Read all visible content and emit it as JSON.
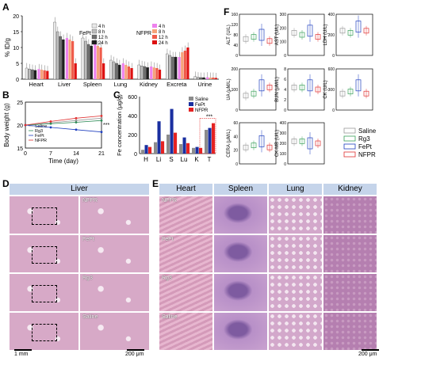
{
  "panels": {
    "A": "A",
    "B": "B",
    "C": "C",
    "D": "D",
    "E": "E",
    "F": "F"
  },
  "chart_A": {
    "type": "bar",
    "ylabel": "% ID/g",
    "ylim": [
      0,
      20
    ],
    "yticks": [
      "0",
      "5",
      "10",
      "15",
      "20"
    ],
    "categories": [
      "Heart",
      "Liver",
      "Spleen",
      "Lung",
      "Kidney",
      "Excreta",
      "Urine"
    ],
    "group_fept": "FePt",
    "group_nfpr": "NFPR",
    "legend_fept": [
      "4 h",
      "8 h",
      "12 h",
      "24 h"
    ],
    "legend_nfpr": [
      "4 h",
      "8 h",
      "12 h",
      "24 h"
    ],
    "fept_colors": [
      "#e9e9e9",
      "#bdbdbd",
      "#6f6f6f",
      "#1e1e1e"
    ],
    "nfpr_colors": [
      "#ee82ee",
      "#f5a37a",
      "#ef5b4a",
      "#dd1111"
    ],
    "fept": [
      [
        3.5,
        3.2,
        3.0,
        2.8
      ],
      [
        18,
        15,
        13.5,
        12.5
      ],
      [
        13,
        12,
        11,
        10.5
      ],
      [
        6,
        5.5,
        5,
        4.5
      ],
      [
        4.5,
        4.2,
        4,
        3.7
      ],
      [
        8,
        7.5,
        7,
        7
      ],
      [
        0.8,
        0.6,
        0.5,
        0.5
      ]
    ],
    "nfpr": [
      [
        3.2,
        3,
        2.8,
        2.6
      ],
      [
        13,
        12.5,
        12,
        5
      ],
      [
        11.5,
        10.5,
        10,
        5
      ],
      [
        5,
        4.5,
        4,
        3.5
      ],
      [
        4,
        3.7,
        3.5,
        3
      ],
      [
        7,
        8.5,
        9,
        10
      ],
      [
        0.6,
        0.5,
        0.5,
        0.4
      ]
    ]
  },
  "chart_B": {
    "type": "line",
    "ylabel": "Body weight (g)",
    "xlabel": "Time (day)",
    "xticks": [
      "0",
      "7",
      "14",
      "21"
    ],
    "yticks": [
      "15",
      "20",
      "25"
    ],
    "ylim": [
      15,
      25
    ],
    "series": [
      {
        "name": "Saline",
        "color": "#999999",
        "values": [
          20,
          20.5,
          21,
          21.5
        ]
      },
      {
        "name": "Rg3",
        "color": "#2e8b57",
        "values": [
          20,
          20.3,
          20.6,
          21
        ]
      },
      {
        "name": "FePt",
        "color": "#1f3fbf",
        "values": [
          20,
          19.5,
          19,
          18.5
        ]
      },
      {
        "name": "NFPR",
        "color": "#e03030",
        "values": [
          20,
          20.8,
          21.5,
          22
        ]
      }
    ],
    "x": [
      0,
      7,
      14,
      21
    ],
    "annotation": "***"
  },
  "chart_C": {
    "type": "bar",
    "ylabel": "Fe concentration (μg/g)",
    "ylim": [
      0,
      600
    ],
    "yticks": [
      "0",
      "200",
      "400",
      "600"
    ],
    "categories": [
      "H",
      "Li",
      "S",
      "Lu",
      "K",
      "T"
    ],
    "series": [
      {
        "name": "Saline",
        "color": "#8c8c8c",
        "values": [
          40,
          120,
          200,
          100,
          60,
          250
        ]
      },
      {
        "name": "FePt",
        "color": "#1a2fa0",
        "values": [
          90,
          340,
          470,
          170,
          70,
          270
        ]
      },
      {
        "name": "NFPR",
        "color": "#e52222",
        "values": [
          70,
          130,
          220,
          110,
          60,
          320
        ]
      }
    ],
    "annotation": "***"
  },
  "panel_F": {
    "boxes": [
      {
        "label": "ALT (U/L)",
        "ticks": [
          "0",
          "40",
          "80",
          "120",
          "160"
        ]
      },
      {
        "label": "AST (U/L)",
        "ticks": [
          "0",
          "100",
          "200",
          "300"
        ]
      },
      {
        "label": "LDH (U/L)",
        "ticks": [
          "0",
          "200",
          "400"
        ]
      },
      {
        "label": "UA (μM/L)",
        "ticks": [
          "0",
          "100",
          "200"
        ]
      },
      {
        "label": "BUN (μM/L)",
        "ticks": [
          "0",
          "2",
          "4",
          "6",
          "8"
        ]
      },
      {
        "label": "CK (U/L)",
        "ticks": [
          "0",
          "300",
          "600"
        ]
      },
      {
        "label": "CERA (μM/L)",
        "ticks": [
          "0",
          "20",
          "40",
          "60"
        ]
      },
      {
        "label": "CK-MB (U/L)",
        "ticks": [
          "0",
          "100",
          "200",
          "300",
          "400"
        ]
      }
    ],
    "legend": [
      {
        "name": "Saline",
        "color": "#999999"
      },
      {
        "name": "Rg3",
        "color": "#3aa05a"
      },
      {
        "name": "FePt",
        "color": "#1f3fbf"
      },
      {
        "name": "NFPR",
        "color": "#e03030"
      }
    ]
  },
  "panel_D": {
    "header": "Liver",
    "rows": [
      "NFPR",
      "FePt",
      "Rg3",
      "Saline"
    ],
    "scale_left": "1 mm",
    "scale_right": "200 μm"
  },
  "panel_E": {
    "headers": [
      "Heart",
      "Spleen",
      "Lung",
      "Kidney"
    ],
    "rows": [
      "NFPR",
      "FePt",
      "Rg3",
      "Saline"
    ],
    "scale": "200 μm"
  }
}
